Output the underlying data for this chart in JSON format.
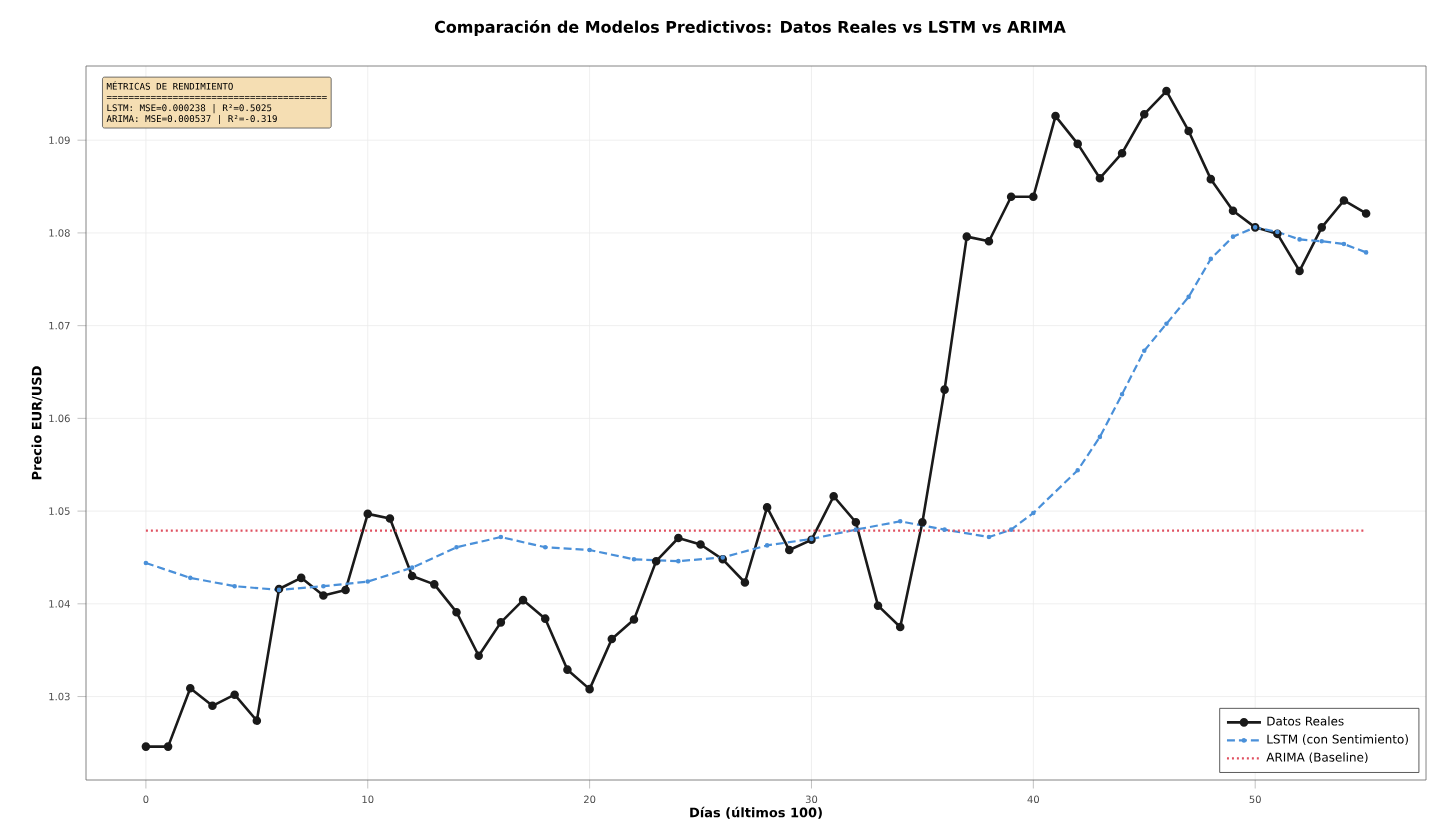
{
  "chart_data": {
    "type": "line",
    "title": "Comparación de Modelos Predictivos: Datos Reales vs LSTM vs ARIMA",
    "xlabel": "Días (últimos 100)",
    "ylabel": "Precio EUR/USD",
    "annotations": [
      "MÉTRICAS DE RENDIMIENTO",
      "========================================",
      "LSTM:    MSE=0.000238  |  R²=0.5025",
      "ARIMA:  MSE=0.000537  |  R²=-0.319"
    ],
    "xlim": [
      -2.7,
      57.7
    ],
    "ylim": [
      1.021,
      1.098
    ],
    "xticks": [
      0,
      10,
      20,
      30,
      40,
      50
    ],
    "yticks": [
      1.03,
      1.04,
      1.05,
      1.06,
      1.07,
      1.08,
      1.09
    ],
    "grid": true,
    "legend": "bottom right",
    "series": [
      {
        "name": "Datos Reales",
        "color": "#1a1a1a",
        "marker": "circle",
        "line_style": "solid",
        "x": [
          0,
          1,
          2,
          3,
          4,
          5,
          6,
          7,
          8,
          9,
          10,
          11,
          12,
          13,
          14,
          15,
          16,
          17,
          18,
          19,
          20,
          21,
          22,
          23,
          24,
          25,
          26,
          27,
          28,
          29,
          30,
          31,
          32,
          33,
          34,
          35,
          36,
          37,
          38,
          39,
          40,
          41,
          42,
          43,
          44,
          45,
          46,
          47,
          48,
          49,
          50,
          51,
          52,
          53,
          54,
          55
        ],
        "values": [
          1.0246,
          1.0246,
          1.0309,
          1.029,
          1.0302,
          1.0274,
          1.0416,
          1.0428,
          1.0409,
          1.0415,
          1.0497,
          1.0492,
          1.043,
          1.0421,
          1.0391,
          1.0344,
          1.038,
          1.0404,
          1.0384,
          1.0329,
          1.0308,
          1.0362,
          1.0383,
          1.0446,
          1.0471,
          1.0464,
          1.0448,
          1.0423,
          1.0504,
          1.0458,
          1.0469,
          1.0516,
          1.0488,
          1.0398,
          1.0375,
          1.0488,
          1.0631,
          1.0796,
          1.0791,
          1.0839,
          1.0839,
          1.0926,
          1.0896,
          1.0859,
          1.0886,
          1.0928,
          1.0953,
          1.091,
          1.0858,
          1.0824,
          1.0806,
          1.0799,
          1.0759,
          1.0806,
          1.0835,
          1.0821
        ]
      },
      {
        "name": "LSTM (con Sentimiento)",
        "color": "#4a90d9",
        "marker": "circle",
        "line_style": "dashed",
        "x": [
          0,
          2,
          4,
          6,
          8,
          10,
          12,
          14,
          16,
          18,
          20,
          22,
          24,
          26,
          28,
          30,
          32,
          34,
          36,
          38,
          39,
          40,
          42,
          43,
          44,
          45,
          46,
          47,
          48,
          49,
          50,
          51,
          52,
          53,
          54,
          55
        ],
        "values": [
          1.0444,
          1.0428,
          1.0419,
          1.0415,
          1.0419,
          1.0424,
          1.0439,
          1.0461,
          1.0472,
          1.0461,
          1.0458,
          1.0448,
          1.0446,
          1.045,
          1.0463,
          1.047,
          1.048,
          1.0489,
          1.048,
          1.0472,
          1.048,
          1.0498,
          1.0544,
          1.058,
          1.0626,
          1.0673,
          1.0702,
          1.0731,
          1.0772,
          1.0796,
          1.0806,
          1.0801,
          1.0793,
          1.0791,
          1.0788,
          1.0779
        ]
      },
      {
        "name": "ARIMA (Baseline)",
        "color": "#e05060",
        "marker": "none",
        "line_style": "dotted",
        "x": [
          0,
          55
        ],
        "values": [
          1.0479,
          1.0479
        ]
      }
    ]
  }
}
